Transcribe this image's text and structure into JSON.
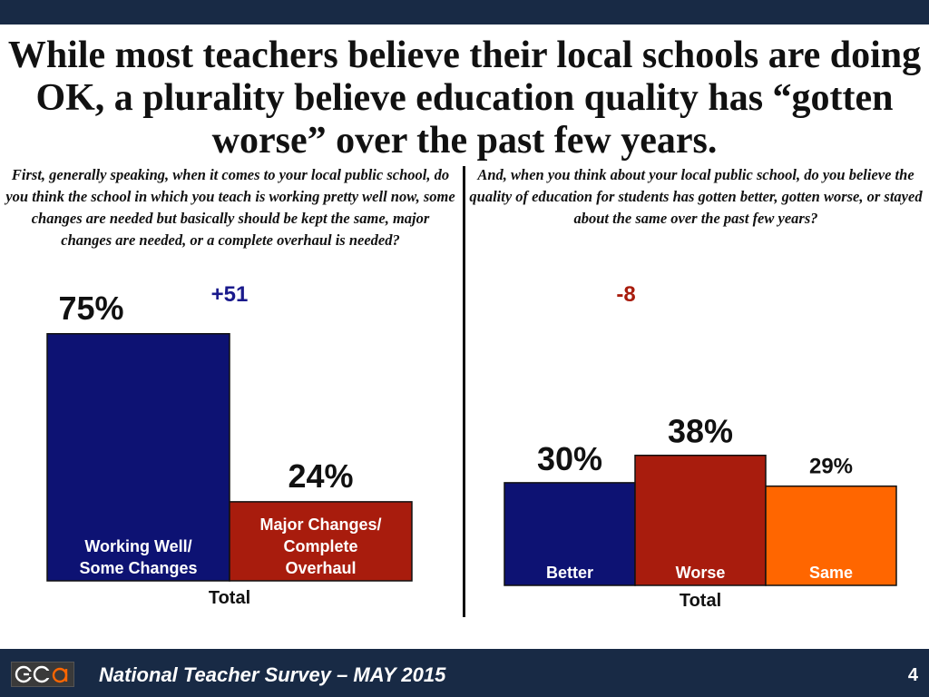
{
  "title": "While most teachers believe their local schools are doing OK, a plurality believe education quality has “gotten worse” over the past few years.",
  "colors": {
    "navy": "#0d1273",
    "dark_red": "#a81c0d",
    "orange": "#ff6600",
    "header_bar": "#182a45",
    "net_positive": "#1a1a8c",
    "net_negative": "#a81c0d"
  },
  "footer": {
    "survey_label": "National Teacher Survey – MAY 2015",
    "page_number": "4",
    "logo_icon": "gqr-logo-icon"
  },
  "chart_data": [
    {
      "type": "bar",
      "question": "First, generally speaking, when it comes to your local public school, do you think the school in which you teach is working pretty well now, some changes are needed but basically should be kept the same, major changes are needed, or a complete overhaul is needed?",
      "categories": [
        "Working Well/ Some Changes",
        "Major Changes/ Complete Overhaul"
      ],
      "category_lines": [
        [
          "Working Well/",
          "Some Changes"
        ],
        [
          "Major Changes/",
          "Complete",
          "Overhaul"
        ]
      ],
      "values": [
        75,
        24
      ],
      "data_labels": [
        "75%",
        "24%"
      ],
      "bar_colors": [
        "#0d1273",
        "#a81c0d"
      ],
      "xlabel": "Total",
      "net_label": "+51",
      "ylim": [
        0,
        75
      ]
    },
    {
      "type": "bar",
      "question": "And, when you think about your local public school, do you believe the quality of education for students has gotten better, gotten worse, or stayed about the same over the past few years?",
      "categories": [
        "Better",
        "Worse",
        "Same"
      ],
      "category_lines": [
        [
          "Better"
        ],
        [
          "Worse"
        ],
        [
          "Same"
        ]
      ],
      "values": [
        30,
        38,
        29
      ],
      "data_labels": [
        "30%",
        "38%",
        "29%"
      ],
      "bar_colors": [
        "#0d1273",
        "#a81c0d",
        "#ff6600"
      ],
      "xlabel": "Total",
      "net_label": "-8",
      "ylim": [
        0,
        75
      ]
    }
  ]
}
